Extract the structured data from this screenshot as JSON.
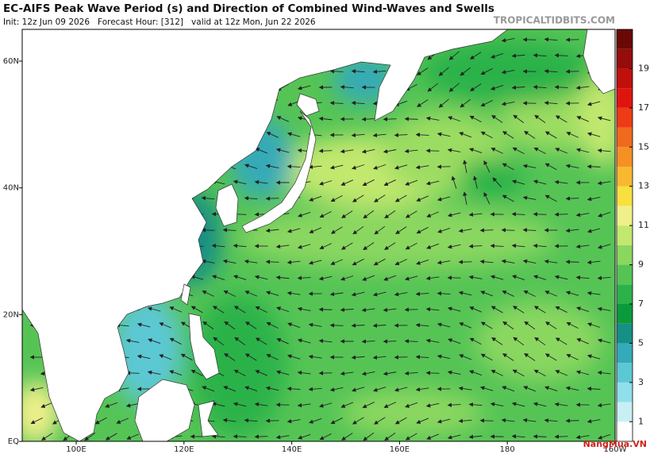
{
  "header": {
    "title": "EC-AIFS Peak Wave Period (s) and Direction of Combined Wind-Waves and Swells",
    "subtitle": "Init: 12z Jun 09 2026   Forecast Hour: [312]   valid at 12z Mon, Jun 22 2026",
    "source": "TROPICALTIDBITS.COM"
  },
  "map": {
    "lat_labels": [
      "60N",
      "40N",
      "20N",
      "EQ"
    ],
    "lon_labels": [
      "100E",
      "120E",
      "140E",
      "160E",
      "180",
      "160W"
    ]
  },
  "colorbar": {
    "lim": [
      0,
      21
    ],
    "ticks": [
      1,
      3,
      5,
      7,
      9,
      11,
      13,
      15,
      17,
      19
    ],
    "colors": [
      "#ffffff",
      "#c8f0f4",
      "#8fe0ea",
      "#5cc8d4",
      "#35aab8",
      "#168f84",
      "#0a9a3c",
      "#2bb24a",
      "#55c455",
      "#8ad760",
      "#c2e86e",
      "#f0f08a",
      "#f8e040",
      "#f8b830",
      "#f59025",
      "#f06a1e",
      "#ee3b17",
      "#e0140e",
      "#c0100c",
      "#950c0a",
      "#6a0806"
    ]
  },
  "watermark": "NangMua.VN"
}
